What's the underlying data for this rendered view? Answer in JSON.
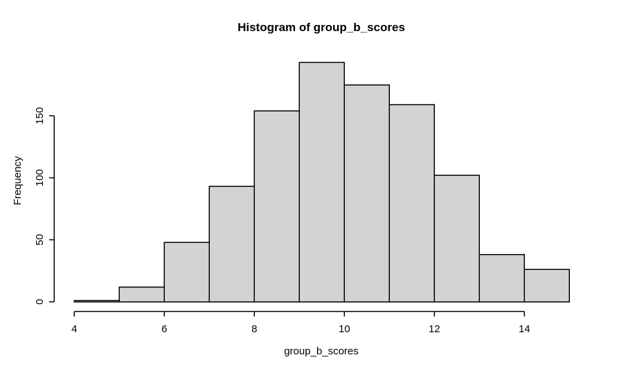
{
  "figure": {
    "title": "Histogram of group_b_scores",
    "xlabel": "group_b_scores",
    "ylabel": "Frequency"
  },
  "chart_data": {
    "type": "bar",
    "subtype": "histogram",
    "title": "Histogram of group_b_scores",
    "xlabel": "group_b_scores",
    "ylabel": "Frequency",
    "bin_width": 1,
    "bin_edges": [
      4,
      5,
      6,
      7,
      8,
      9,
      10,
      11,
      12,
      13,
      14,
      15
    ],
    "counts": [
      1,
      12,
      48,
      93,
      154,
      193,
      175,
      159,
      102,
      38,
      26
    ],
    "x_ticks": [
      4,
      6,
      8,
      10,
      12,
      14
    ],
    "y_ticks": [
      0,
      50,
      100,
      150
    ],
    "xlim": [
      4,
      15
    ],
    "ylim": [
      0,
      193
    ],
    "y_axis_range": [
      0,
      150
    ],
    "grid": false,
    "legend": null,
    "bar_fill": "#d3d3d3",
    "bar_stroke": "#000000",
    "text_color": "#000000",
    "background": "#ffffff"
  }
}
